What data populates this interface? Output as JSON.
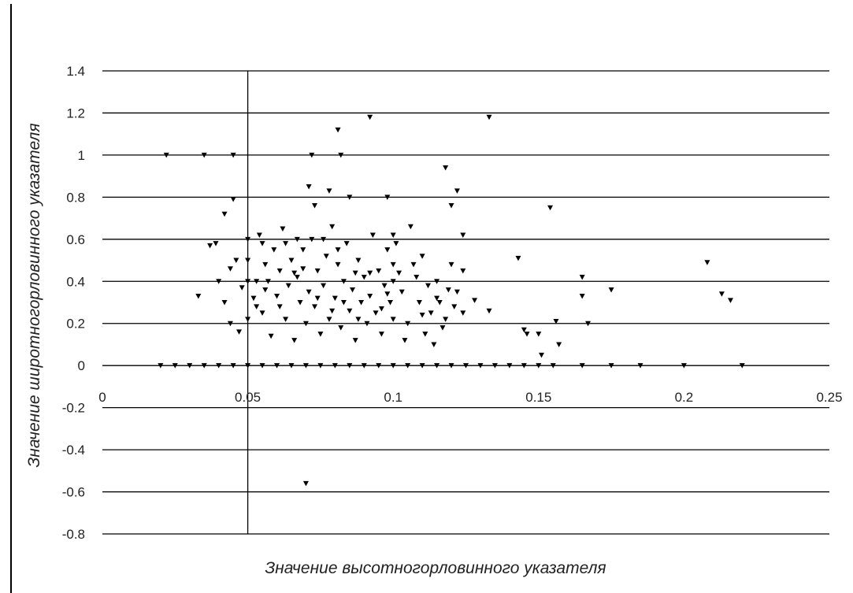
{
  "chart_data": {
    "type": "scatter",
    "xlabel": "Значение высотногорловинного указателя",
    "ylabel": "Значение широтногорловинного указателя",
    "xlim": [
      0,
      0.25
    ],
    "ylim": [
      -0.8,
      1.4
    ],
    "x_ticks": [
      "0",
      "0.05",
      "0.1",
      "0.15",
      "0.2",
      "0.25"
    ],
    "y_ticks": [
      "-0.8",
      "-0.6",
      "-0.4",
      "-0.2",
      "0",
      "0.2",
      "0.4",
      "0.6",
      "0.8",
      "1",
      "1.2",
      "1.4"
    ],
    "grid": "horizontal",
    "marker_color": "#000000",
    "series": [
      {
        "points": [
          [
            0.022,
            1.0
          ],
          [
            0.035,
            1.0
          ],
          [
            0.045,
            1.0
          ],
          [
            0.072,
            1.0
          ],
          [
            0.082,
            1.0
          ],
          [
            0.081,
            1.12
          ],
          [
            0.092,
            1.18
          ],
          [
            0.133,
            1.18
          ],
          [
            0.118,
            0.94
          ],
          [
            0.078,
            0.83
          ],
          [
            0.071,
            0.85
          ],
          [
            0.122,
            0.83
          ],
          [
            0.12,
            0.76
          ],
          [
            0.073,
            0.76
          ],
          [
            0.085,
            0.8
          ],
          [
            0.098,
            0.8
          ],
          [
            0.042,
            0.72
          ],
          [
            0.045,
            0.79
          ],
          [
            0.154,
            0.75
          ],
          [
            0.165,
            0.42
          ],
          [
            0.033,
            0.33
          ],
          [
            0.037,
            0.57
          ],
          [
            0.04,
            0.4
          ],
          [
            0.042,
            0.3
          ],
          [
            0.044,
            0.2
          ],
          [
            0.046,
            0.5
          ],
          [
            0.048,
            0.37
          ],
          [
            0.05,
            0.6
          ],
          [
            0.052,
            0.32
          ],
          [
            0.053,
            0.4
          ],
          [
            0.054,
            0.62
          ],
          [
            0.055,
            0.25
          ],
          [
            0.056,
            0.48
          ],
          [
            0.057,
            0.4
          ],
          [
            0.058,
            0.14
          ],
          [
            0.059,
            0.55
          ],
          [
            0.06,
            0.33
          ],
          [
            0.061,
            0.45
          ],
          [
            0.062,
            0.65
          ],
          [
            0.063,
            0.22
          ],
          [
            0.064,
            0.38
          ],
          [
            0.065,
            0.5
          ],
          [
            0.066,
            0.12
          ],
          [
            0.067,
            0.42
          ],
          [
            0.068,
            0.3
          ],
          [
            0.069,
            0.55
          ],
          [
            0.07,
            0.2
          ],
          [
            0.071,
            0.35
          ],
          [
            0.072,
            0.6
          ],
          [
            0.073,
            0.28
          ],
          [
            0.074,
            0.45
          ],
          [
            0.075,
            0.15
          ],
          [
            0.076,
            0.38
          ],
          [
            0.077,
            0.52
          ],
          [
            0.078,
            0.22
          ],
          [
            0.079,
            0.66
          ],
          [
            0.08,
            0.32
          ],
          [
            0.081,
            0.48
          ],
          [
            0.082,
            0.18
          ],
          [
            0.083,
            0.4
          ],
          [
            0.084,
            0.58
          ],
          [
            0.085,
            0.26
          ],
          [
            0.086,
            0.36
          ],
          [
            0.087,
            0.12
          ],
          [
            0.088,
            0.5
          ],
          [
            0.089,
            0.3
          ],
          [
            0.09,
            0.42
          ],
          [
            0.091,
            0.2
          ],
          [
            0.092,
            0.33
          ],
          [
            0.093,
            0.62
          ],
          [
            0.094,
            0.25
          ],
          [
            0.095,
            0.45
          ],
          [
            0.096,
            0.15
          ],
          [
            0.097,
            0.38
          ],
          [
            0.098,
            0.55
          ],
          [
            0.099,
            0.3
          ],
          [
            0.1,
            0.62
          ],
          [
            0.1,
            0.48
          ],
          [
            0.1,
            0.4
          ],
          [
            0.1,
            0.22
          ],
          [
            0.101,
            0.58
          ],
          [
            0.103,
            0.35
          ],
          [
            0.105,
            0.2
          ],
          [
            0.106,
            0.66
          ],
          [
            0.108,
            0.42
          ],
          [
            0.109,
            0.3
          ],
          [
            0.11,
            0.52
          ],
          [
            0.111,
            0.15
          ],
          [
            0.112,
            0.38
          ],
          [
            0.113,
            0.25
          ],
          [
            0.114,
            0.1
          ],
          [
            0.115,
            0.4
          ],
          [
            0.116,
            0.3
          ],
          [
            0.118,
            0.22
          ],
          [
            0.12,
            0.48
          ],
          [
            0.122,
            0.35
          ],
          [
            0.124,
            0.62
          ],
          [
            0.124,
            0.45
          ],
          [
            0.124,
            0.25
          ],
          [
            0.128,
            0.31
          ],
          [
            0.133,
            0.26
          ],
          [
            0.143,
            0.51
          ],
          [
            0.145,
            0.17
          ],
          [
            0.146,
            0.15
          ],
          [
            0.15,
            0.15
          ],
          [
            0.151,
            0.05
          ],
          [
            0.156,
            0.21
          ],
          [
            0.157,
            0.1
          ],
          [
            0.165,
            0.33
          ],
          [
            0.167,
            0.2
          ],
          [
            0.175,
            0.36
          ],
          [
            0.208,
            0.49
          ],
          [
            0.213,
            0.34
          ],
          [
            0.216,
            0.31
          ],
          [
            0.053,
            0.28
          ],
          [
            0.056,
            0.36
          ],
          [
            0.061,
            0.28
          ],
          [
            0.066,
            0.44
          ],
          [
            0.069,
            0.46
          ],
          [
            0.074,
            0.32
          ],
          [
            0.079,
            0.26
          ],
          [
            0.083,
            0.3
          ],
          [
            0.088,
            0.22
          ],
          [
            0.092,
            0.44
          ],
          [
            0.096,
            0.27
          ],
          [
            0.104,
            0.12
          ],
          [
            0.107,
            0.48
          ],
          [
            0.117,
            0.18
          ],
          [
            0.05,
            0.4
          ],
          [
            0.05,
            0.5
          ],
          [
            0.05,
            0.22
          ],
          [
            0.047,
            0.16
          ],
          [
            0.044,
            0.46
          ],
          [
            0.039,
            0.58
          ],
          [
            0.055,
            0.58
          ],
          [
            0.063,
            0.58
          ],
          [
            0.067,
            0.6
          ],
          [
            0.076,
            0.6
          ],
          [
            0.081,
            0.55
          ],
          [
            0.087,
            0.44
          ],
          [
            0.098,
            0.34
          ],
          [
            0.102,
            0.44
          ],
          [
            0.11,
            0.24
          ],
          [
            0.115,
            0.32
          ],
          [
            0.119,
            0.36
          ],
          [
            0.121,
            0.28
          ],
          [
            0.07,
            -0.56
          ],
          [
            0.02,
            0.0
          ],
          [
            0.025,
            0.0
          ],
          [
            0.03,
            0.0
          ],
          [
            0.035,
            0.0
          ],
          [
            0.04,
            0.0
          ],
          [
            0.045,
            0.0
          ],
          [
            0.05,
            0.0
          ],
          [
            0.055,
            0.0
          ],
          [
            0.06,
            0.0
          ],
          [
            0.065,
            0.0
          ],
          [
            0.07,
            0.0
          ],
          [
            0.075,
            0.0
          ],
          [
            0.08,
            0.0
          ],
          [
            0.085,
            0.0
          ],
          [
            0.09,
            0.0
          ],
          [
            0.095,
            0.0
          ],
          [
            0.1,
            0.0
          ],
          [
            0.105,
            0.0
          ],
          [
            0.11,
            0.0
          ],
          [
            0.115,
            0.0
          ],
          [
            0.12,
            0.0
          ],
          [
            0.125,
            0.0
          ],
          [
            0.13,
            0.0
          ],
          [
            0.135,
            0.0
          ],
          [
            0.14,
            0.0
          ],
          [
            0.145,
            0.0
          ],
          [
            0.15,
            0.0
          ],
          [
            0.155,
            0.0
          ],
          [
            0.165,
            0.0
          ],
          [
            0.175,
            0.0
          ],
          [
            0.185,
            0.0
          ],
          [
            0.2,
            0.0
          ],
          [
            0.22,
            0.0
          ]
        ]
      }
    ]
  }
}
